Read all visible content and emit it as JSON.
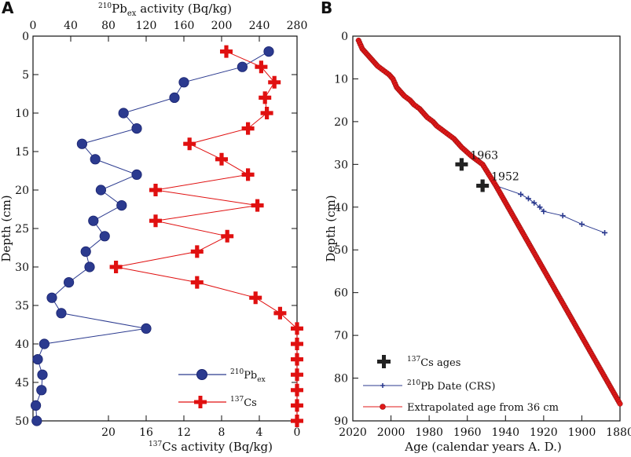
{
  "chart_data": [
    {
      "panel": "A",
      "type": "line",
      "ylabel": "Depth (cm)",
      "ylim": [
        0,
        50
      ],
      "yticks": [
        0,
        5,
        10,
        15,
        20,
        25,
        30,
        35,
        40,
        45,
        50
      ],
      "top_axis": {
        "label": "210Pbex activity (Bq/kg)",
        "lim": [
          0,
          280
        ],
        "ticks": [
          0,
          40,
          80,
          120,
          160,
          200,
          240,
          280
        ]
      },
      "bottom_axis": {
        "label": "137Cs activity (Bq/kg)",
        "lim": [
          28,
          0
        ],
        "ticks": [
          20,
          16,
          12,
          8,
          4,
          0
        ]
      },
      "series": [
        {
          "name": "210Pbex",
          "axis": "top",
          "color": "#2b3a8f",
          "marker": "circle",
          "depth": [
            2,
            4,
            6,
            8,
            10,
            12,
            14,
            16,
            18,
            20,
            22,
            24,
            26,
            28,
            30,
            32,
            34,
            36,
            38,
            40,
            42,
            44,
            46,
            48,
            50
          ],
          "values": [
            250,
            222,
            160,
            150,
            96,
            110,
            52,
            66,
            110,
            72,
            94,
            64,
            76,
            56,
            60,
            38,
            20,
            30,
            120,
            12,
            5,
            10,
            9,
            3,
            4
          ]
        },
        {
          "name": "137Cs",
          "axis": "bottom",
          "color": "#e01010",
          "marker": "plus",
          "depth": [
            2,
            4,
            6,
            8,
            10,
            12,
            14,
            16,
            18,
            20,
            22,
            24,
            26,
            28,
            30,
            32,
            34,
            36,
            38,
            40,
            42,
            44,
            46,
            48,
            50
          ],
          "values": [
            7.5,
            3.8,
            2.4,
            3.4,
            3.2,
            5.2,
            11.4,
            8.0,
            5.2,
            15.0,
            4.2,
            15.0,
            7.4,
            10.6,
            19.2,
            10.6,
            4.4,
            1.8,
            0,
            0,
            0,
            0,
            0,
            0,
            0
          ]
        }
      ],
      "legend": {
        "position": "bottom-right",
        "entries": [
          "210Pbex",
          "137Cs"
        ]
      }
    },
    {
      "panel": "B",
      "type": "line",
      "xlabel": "Age (calendar years A. D.)",
      "ylabel": "Depth (cm)",
      "xlim": [
        2020,
        1880
      ],
      "xticks": [
        2020,
        2000,
        1980,
        1960,
        1940,
        1920,
        1900,
        1880
      ],
      "ylim": [
        0,
        90
      ],
      "yticks": [
        0,
        10,
        20,
        30,
        40,
        50,
        60,
        70,
        80,
        90
      ],
      "series": [
        {
          "name": "137Cs ages",
          "marker": "bold-plus",
          "color": "#222222",
          "points": [
            {
              "age": 1963,
              "depth": 30,
              "label": "1963"
            },
            {
              "age": 1952,
              "depth": 35,
              "label": "1952"
            }
          ]
        },
        {
          "name": "210Pb Date (CRS)",
          "marker": "small-plus",
          "color": "#2b3a8f",
          "age": [
            2017,
            2016,
            2015,
            2013,
            2011,
            2009,
            2007,
            2004,
            2001,
            1999,
            1998,
            1997,
            1995,
            1993,
            1990,
            1988,
            1985,
            1983,
            1981,
            1978,
            1976,
            1973,
            1970,
            1967,
            1965,
            1963,
            1958,
            1952,
            1945,
            1932,
            1928,
            1925,
            1922,
            1920,
            1910,
            1900,
            1888
          ],
          "depth": [
            1,
            2,
            3,
            4,
            5,
            6,
            7,
            8,
            9,
            10,
            11,
            12,
            13,
            14,
            15,
            16,
            17,
            18,
            19,
            20,
            21,
            22,
            23,
            24,
            25,
            26,
            28,
            30,
            35,
            37,
            38,
            39,
            40,
            41,
            42,
            44,
            46
          ]
        },
        {
          "name": "Extrapolated age from 36 cm",
          "marker": "circle",
          "color": "#e01818",
          "age": [
            2017,
            2016,
            2015,
            2013,
            2011,
            2009,
            2007,
            2004,
            2001,
            1999,
            1998,
            1997,
            1995,
            1993,
            1990,
            1988,
            1985,
            1983,
            1981,
            1978,
            1976,
            1973,
            1970,
            1967,
            1965,
            1963,
            1958,
            1952,
            1945,
            1880
          ],
          "depth": [
            1,
            2,
            3,
            4,
            5,
            6,
            7,
            8,
            9,
            10,
            11,
            12,
            13,
            14,
            15,
            16,
            17,
            18,
            19,
            20,
            21,
            22,
            23,
            24,
            25,
            26,
            28,
            30,
            35,
            86
          ]
        }
      ],
      "legend": {
        "position": "bottom-left",
        "entries": [
          "137Cs ages",
          "210Pb Date (CRS)",
          "Extrapolated age from 36 cm"
        ]
      }
    }
  ]
}
